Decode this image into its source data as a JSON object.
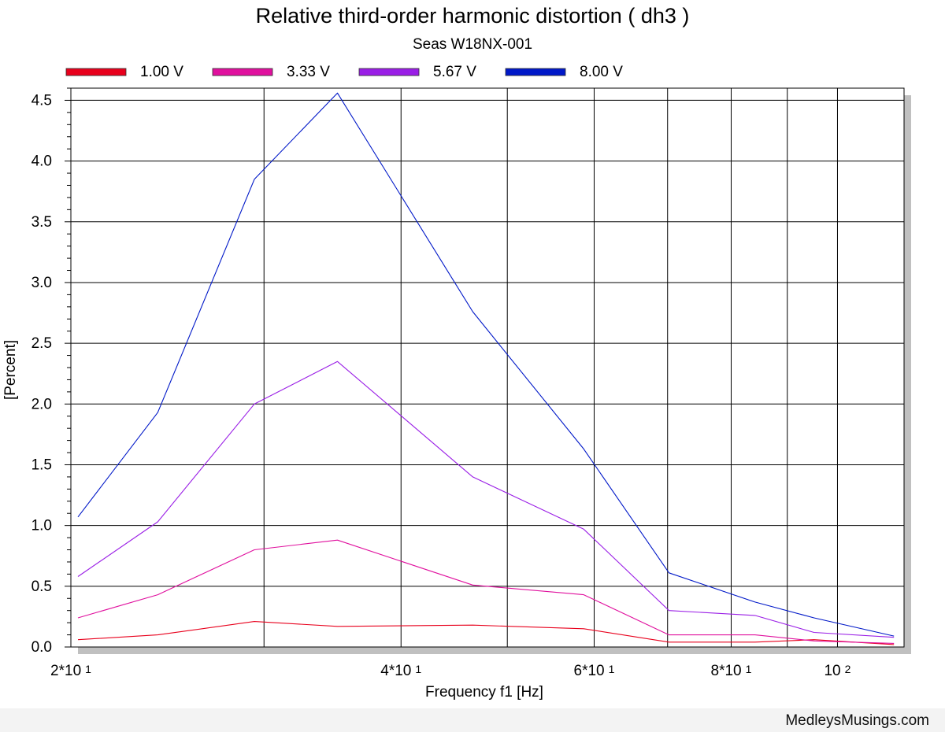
{
  "colors": {
    "series_1": "#e8001c",
    "series_2": "#e0109e",
    "series_3": "#9a1ee6",
    "series_4": "#0018c8",
    "grid": "#000000",
    "plot_shadow": "#c0c0c0",
    "footer_bg": "#f3f3f3"
  },
  "footer": {
    "credit": "MedleysMusings.com"
  },
  "chart_data": {
    "type": "line",
    "title": "Relative third-order harmonic distortion ( dh3 )",
    "subtitle": "Seas W18NX-001",
    "xlabel": "Frequency f1  [Hz]",
    "ylabel": "[Percent]",
    "x_scale": "log",
    "xlim": [
      20,
      115
    ],
    "ylim": [
      0,
      4.6
    ],
    "grid": true,
    "legend_position": "top",
    "x_tick_labels": [
      {
        "value": 20,
        "main": "2*10",
        "exp": "1"
      },
      {
        "value": 40,
        "main": "4*10",
        "exp": "1"
      },
      {
        "value": 60,
        "main": "6*10",
        "exp": "1"
      },
      {
        "value": 80,
        "main": "8*10",
        "exp": "1"
      },
      {
        "value": 100,
        "main": "10",
        "exp": "2"
      }
    ],
    "x_gridlines": [
      20,
      30,
      40,
      50,
      60,
      70,
      80,
      90,
      100
    ],
    "y_ticks": [
      {
        "value": 0,
        "label": "0.0"
      },
      {
        "value": 0.5,
        "label": "0.5"
      },
      {
        "value": 1.0,
        "label": "1.0"
      },
      {
        "value": 1.5,
        "label": "1.5"
      },
      {
        "value": 2.0,
        "label": "2.0"
      },
      {
        "value": 2.5,
        "label": "2.5"
      },
      {
        "value": 3.0,
        "label": "3.0"
      },
      {
        "value": 3.5,
        "label": "3.5"
      },
      {
        "value": 4.0,
        "label": "4.0"
      },
      {
        "value": 4.5,
        "label": "4.5"
      }
    ],
    "x": [
      20.3,
      24.0,
      29.4,
      35.0,
      46.5,
      58.7,
      70.2,
      84.1,
      95.2,
      112.6
    ],
    "series": [
      {
        "name": "1.00 V",
        "values": [
          0.06,
          0.1,
          0.21,
          0.17,
          0.18,
          0.15,
          0.04,
          0.04,
          0.06,
          0.02
        ]
      },
      {
        "name": "3.33 V",
        "values": [
          0.24,
          0.43,
          0.8,
          0.88,
          0.51,
          0.43,
          0.1,
          0.1,
          0.05,
          0.03
        ]
      },
      {
        "name": "5.67 V",
        "values": [
          0.58,
          1.03,
          2.0,
          2.35,
          1.4,
          0.97,
          0.3,
          0.26,
          0.12,
          0.08
        ]
      },
      {
        "name": "8.00 V",
        "values": [
          1.07,
          1.93,
          3.85,
          4.56,
          2.76,
          1.63,
          0.61,
          0.37,
          0.24,
          0.09
        ]
      }
    ]
  }
}
